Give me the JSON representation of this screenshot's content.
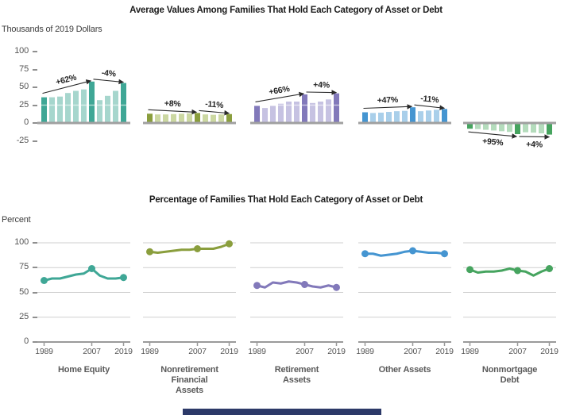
{
  "top_panel": {
    "title": "Average Values Among Families That Hold Each Category of Asset or Debt",
    "unit_label": "Thousands of 2019 Dollars"
  },
  "bottom_panel": {
    "title": "Percentage of Families That Hold Each Category of Asset or Debt",
    "unit_label": "Percent"
  },
  "categories": [
    {
      "label": "Home Equity",
      "lines": [
        "Home Equity"
      ],
      "dark": "#3fa796",
      "light": "#a6d6cd"
    },
    {
      "label": "Nonretirement Financial Assets",
      "lines": [
        "Nonretirement",
        "Financial",
        "Assets"
      ],
      "dark": "#8a9e3d",
      "light": "#ccd8a2"
    },
    {
      "label": "Retirement Assets",
      "lines": [
        "Retirement",
        "Assets"
      ],
      "dark": "#8279ba",
      "light": "#c6c2e2"
    },
    {
      "label": "Other Assets",
      "lines": [
        "Other Assets"
      ],
      "dark": "#4595d1",
      "light": "#a9cfea"
    },
    {
      "label": "Nonmortgage Debt",
      "lines": [
        "Nonmortgage",
        "Debt"
      ],
      "dark": "#46a45f",
      "light": "#b4dcbc"
    }
  ],
  "chart_data": [
    {
      "type": "bar",
      "title": "Average Values Among Families That Hold Each Category of Asset or Debt",
      "ylabel": "Thousands of 2019 Dollars",
      "ylim": [
        -25,
        100
      ],
      "yticks": [
        100,
        75,
        50,
        25,
        0,
        -25
      ],
      "x": [
        1989,
        1992,
        1995,
        1998,
        2001,
        2004,
        2007,
        2010,
        2013,
        2016,
        2019
      ],
      "highlight_years": [
        1989,
        2007,
        2019
      ],
      "grid": false,
      "series": [
        {
          "name": "Home Equity",
          "values": [
            36,
            36,
            37,
            42,
            45,
            47,
            58,
            32,
            38,
            45,
            56
          ],
          "changes": [
            "+62%",
            "-4%"
          ]
        },
        {
          "name": "Nonretirement Financial Assets",
          "values": [
            13,
            12,
            12,
            12.5,
            13,
            13.5,
            14,
            12,
            11.5,
            12,
            12.5
          ],
          "changes": [
            "+8%",
            "-11%"
          ]
        },
        {
          "name": "Retirement Assets",
          "values": [
            24,
            21,
            24,
            27,
            30,
            30,
            40,
            28,
            30,
            33,
            41.5
          ],
          "changes": [
            "+66%",
            "+4%"
          ]
        },
        {
          "name": "Other Assets",
          "values": [
            15,
            14,
            14.5,
            15.5,
            16.5,
            17,
            22,
            16.5,
            17.5,
            18.5,
            19.6
          ],
          "changes": [
            "+47%",
            "-11%"
          ]
        },
        {
          "name": "Nonmortgage Debt",
          "values": [
            -8,
            -8.5,
            -9.5,
            -10.5,
            -11.5,
            -12.5,
            -15.6,
            -13,
            -13.5,
            -14.5,
            -16.2
          ],
          "changes": [
            "+95%",
            "+4%"
          ]
        }
      ]
    },
    {
      "type": "line",
      "title": "Percentage of Families That Hold Each Category of Asset or Debt",
      "ylabel": "Percent",
      "ylim": [
        0,
        100
      ],
      "yticks": [
        100,
        75,
        50,
        25,
        0
      ],
      "xticks": [
        "1989",
        "2007",
        "2019"
      ],
      "x": [
        1989,
        1992,
        1995,
        1998,
        2001,
        2004,
        2007,
        2010,
        2013,
        2016,
        2019
      ],
      "marker_years": [
        1989,
        2007,
        2019
      ],
      "grid": true,
      "series": [
        {
          "name": "Home Equity",
          "values": [
            62,
            64,
            64,
            66,
            68,
            69,
            74,
            67,
            64,
            64,
            65
          ]
        },
        {
          "name": "Nonretirement Financial Assets",
          "values": [
            91,
            90,
            91,
            92,
            93,
            93,
            94,
            94,
            94,
            96,
            99
          ]
        },
        {
          "name": "Retirement Assets",
          "values": [
            57,
            55,
            60,
            59,
            61,
            60,
            58,
            56,
            55,
            57,
            55
          ]
        },
        {
          "name": "Other Assets",
          "values": [
            89,
            89,
            87,
            88,
            89,
            91,
            92,
            91,
            90,
            90,
            89
          ]
        },
        {
          "name": "Nonmortgage Debt",
          "values": [
            73,
            70,
            71,
            71,
            72,
            74,
            72,
            71,
            67,
            71,
            74
          ]
        }
      ]
    }
  ],
  "footer": {
    "bar_color": "#2c3968"
  }
}
